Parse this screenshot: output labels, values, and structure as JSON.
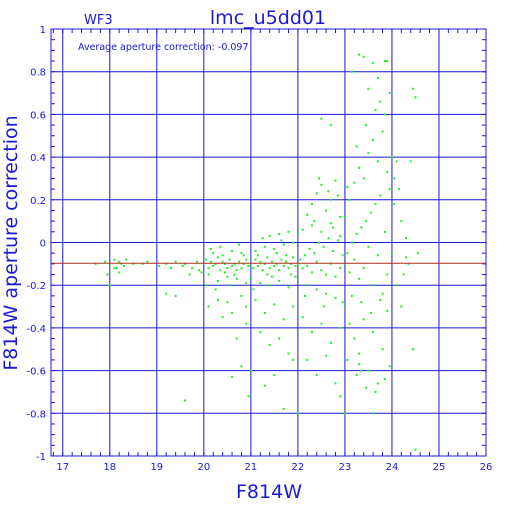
{
  "chart_data": {
    "type": "scatter",
    "title": "lmc_u5dd01",
    "subtitle": "WF3",
    "annotation": "Average aperture correction: -0.097",
    "xlabel": "F814W",
    "ylabel": "F814W aperture correction",
    "xlim": [
      16.75,
      26
    ],
    "ylim": [
      -1,
      1
    ],
    "x_ticks": [
      17,
      18,
      19,
      20,
      21,
      22,
      23,
      24,
      25,
      26
    ],
    "y_ticks": [
      -1,
      -0.8,
      -0.6,
      -0.4,
      -0.2,
      0,
      0.2,
      0.4,
      0.6,
      0.8,
      1
    ],
    "x_tick_labels": [
      "17",
      "18",
      "19",
      "20",
      "21",
      "22",
      "23",
      "24",
      "25",
      "26"
    ],
    "y_tick_labels": [
      "-1",
      "-0.8",
      "-0.6",
      "-0.4",
      "-0.2",
      "0",
      "0.2",
      "0.4",
      "0.6",
      "0.8",
      "1"
    ],
    "grid": true,
    "reference_line": -0.097,
    "colors": {
      "axes": "#1a1ad6",
      "points": "#22ee22",
      "reference_line": "#b42a1e",
      "background": "#ffffff"
    },
    "series": [
      {
        "points": [
          [
            17.7,
            -0.1
          ],
          [
            17.9,
            -0.09
          ],
          [
            18.0,
            -0.1
          ],
          [
            18.1,
            -0.08
          ],
          [
            18.15,
            -0.12
          ],
          [
            18.2,
            -0.09
          ],
          [
            18.25,
            -0.1
          ],
          [
            18.3,
            -0.11
          ],
          [
            18.35,
            -0.08
          ],
          [
            18.5,
            -0.1
          ],
          [
            18.7,
            -0.1
          ],
          [
            18.8,
            -0.09
          ],
          [
            18.0,
            -0.2
          ],
          [
            18.2,
            -0.14
          ],
          [
            17.95,
            -0.15
          ],
          [
            18.1,
            -0.12
          ],
          [
            19.05,
            -0.11
          ],
          [
            19.2,
            -0.1
          ],
          [
            19.3,
            -0.12
          ],
          [
            19.4,
            -0.09
          ],
          [
            19.55,
            -0.11
          ],
          [
            19.6,
            -0.1
          ],
          [
            19.75,
            -0.12
          ],
          [
            19.85,
            -0.09
          ],
          [
            19.2,
            -0.24
          ],
          [
            19.4,
            -0.25
          ],
          [
            19.6,
            -0.74
          ],
          [
            19.7,
            -0.15
          ],
          [
            19.9,
            -0.13
          ],
          [
            19.95,
            -0.14
          ],
          [
            20.0,
            -0.1
          ],
          [
            20.05,
            -0.08
          ],
          [
            20.1,
            -0.12
          ],
          [
            20.15,
            -0.09
          ],
          [
            20.2,
            -0.11
          ],
          [
            20.25,
            -0.1
          ],
          [
            20.3,
            -0.07
          ],
          [
            20.35,
            -0.13
          ],
          [
            20.4,
            -0.09
          ],
          [
            20.45,
            -0.1
          ],
          [
            20.5,
            -0.12
          ],
          [
            20.55,
            -0.08
          ],
          [
            20.6,
            -0.11
          ],
          [
            20.65,
            -0.1
          ],
          [
            20.7,
            -0.13
          ],
          [
            20.75,
            -0.09
          ],
          [
            20.8,
            -0.12
          ],
          [
            20.85,
            -0.1
          ],
          [
            20.9,
            -0.08
          ],
          [
            20.95,
            -0.11
          ],
          [
            20.1,
            -0.15
          ],
          [
            20.2,
            -0.05
          ],
          [
            20.3,
            -0.18
          ],
          [
            20.4,
            -0.06
          ],
          [
            20.5,
            -0.16
          ],
          [
            20.6,
            -0.04
          ],
          [
            20.7,
            -0.17
          ],
          [
            20.8,
            -0.05
          ],
          [
            20.9,
            -0.19
          ],
          [
            20.15,
            -0.03
          ],
          [
            20.35,
            -0.02
          ],
          [
            20.55,
            -0.2
          ],
          [
            20.75,
            -0.01
          ],
          [
            20.25,
            -0.22
          ],
          [
            20.45,
            -0.14
          ],
          [
            20.65,
            -0.15
          ],
          [
            20.85,
            -0.06
          ],
          [
            20.05,
            -0.2
          ],
          [
            20.3,
            -0.27
          ],
          [
            20.6,
            -0.33
          ],
          [
            20.8,
            -0.25
          ],
          [
            20.9,
            -0.38
          ],
          [
            20.7,
            -0.45
          ],
          [
            20.4,
            -0.35
          ],
          [
            20.8,
            -0.58
          ],
          [
            20.6,
            -0.63
          ],
          [
            20.95,
            -0.72
          ],
          [
            20.1,
            -0.3
          ],
          [
            20.5,
            -0.28
          ],
          [
            20.9,
            -0.3
          ],
          [
            21.0,
            -0.1
          ],
          [
            21.05,
            -0.12
          ],
          [
            21.1,
            -0.08
          ],
          [
            21.15,
            -0.11
          ],
          [
            21.2,
            -0.09
          ],
          [
            21.25,
            -0.13
          ],
          [
            21.3,
            -0.1
          ],
          [
            21.35,
            -0.07
          ],
          [
            21.4,
            -0.12
          ],
          [
            21.45,
            -0.09
          ],
          [
            21.5,
            -0.11
          ],
          [
            21.55,
            -0.1
          ],
          [
            21.6,
            -0.13
          ],
          [
            21.65,
            -0.08
          ],
          [
            21.7,
            -0.11
          ],
          [
            21.75,
            -0.09
          ],
          [
            21.8,
            -0.12
          ],
          [
            21.85,
            -0.1
          ],
          [
            21.9,
            -0.07
          ],
          [
            21.95,
            -0.11
          ],
          [
            21.0,
            -0.17
          ],
          [
            21.1,
            -0.04
          ],
          [
            21.2,
            -0.19
          ],
          [
            21.3,
            -0.02
          ],
          [
            21.4,
            -0.2
          ],
          [
            21.5,
            -0.03
          ],
          [
            21.6,
            -0.18
          ],
          [
            21.7,
            -0.01
          ],
          [
            21.8,
            -0.21
          ],
          [
            21.9,
            0.0
          ],
          [
            21.05,
            -0.22
          ],
          [
            21.25,
            0.02
          ],
          [
            21.45,
            -0.16
          ],
          [
            21.65,
            0.01
          ],
          [
            21.85,
            -0.15
          ],
          [
            21.15,
            -0.06
          ],
          [
            21.35,
            -0.15
          ],
          [
            21.55,
            -0.05
          ],
          [
            21.75,
            -0.06
          ],
          [
            21.95,
            -0.16
          ],
          [
            21.1,
            -0.27
          ],
          [
            21.3,
            -0.33
          ],
          [
            21.5,
            -0.29
          ],
          [
            21.7,
            -0.36
          ],
          [
            21.9,
            -0.3
          ],
          [
            21.2,
            -0.42
          ],
          [
            21.4,
            -0.48
          ],
          [
            21.6,
            -0.45
          ],
          [
            21.8,
            -0.52
          ],
          [
            21.0,
            -0.6
          ],
          [
            21.3,
            -0.67
          ],
          [
            21.5,
            -0.62
          ],
          [
            21.7,
            -0.78
          ],
          [
            21.9,
            -0.55
          ],
          [
            21.6,
            0.04
          ],
          [
            21.8,
            0.05
          ],
          [
            21.4,
            0.03
          ],
          [
            22.0,
            -0.1
          ],
          [
            22.05,
            -0.08
          ],
          [
            22.1,
            -0.12
          ],
          [
            22.15,
            -0.06
          ],
          [
            22.2,
            -0.11
          ],
          [
            22.25,
            -0.03
          ],
          [
            22.3,
            -0.14
          ],
          [
            22.35,
            -0.05
          ],
          [
            22.4,
            -0.09
          ],
          [
            22.45,
            0.0
          ],
          [
            22.5,
            -0.13
          ],
          [
            22.55,
            -0.02
          ],
          [
            22.6,
            -0.15
          ],
          [
            22.65,
            0.02
          ],
          [
            22.7,
            -0.1
          ],
          [
            22.75,
            -0.04
          ],
          [
            22.8,
            -0.16
          ],
          [
            22.85,
            0.01
          ],
          [
            22.9,
            -0.12
          ],
          [
            22.95,
            -0.06
          ],
          [
            22.0,
            0.04
          ],
          [
            22.1,
            0.06
          ],
          [
            22.2,
            -0.2
          ],
          [
            22.3,
            0.08
          ],
          [
            22.4,
            -0.22
          ],
          [
            22.5,
            0.05
          ],
          [
            22.6,
            -0.24
          ],
          [
            22.7,
            0.09
          ],
          [
            22.8,
            -0.26
          ],
          [
            22.9,
            0.03
          ],
          [
            22.15,
            -0.25
          ],
          [
            22.35,
            0.1
          ],
          [
            22.55,
            -0.3
          ],
          [
            22.75,
            0.07
          ],
          [
            22.95,
            -0.28
          ],
          [
            22.2,
            0.13
          ],
          [
            22.3,
            0.18
          ],
          [
            22.4,
            0.23
          ],
          [
            22.5,
            0.27
          ],
          [
            22.6,
            0.15
          ],
          [
            22.7,
            0.2
          ],
          [
            22.8,
            0.29
          ],
          [
            22.9,
            0.12
          ],
          [
            22.45,
            0.3
          ],
          [
            22.65,
            0.24
          ],
          [
            22.85,
            0.22
          ],
          [
            22.1,
            -0.35
          ],
          [
            22.3,
            -0.42
          ],
          [
            22.5,
            -0.38
          ],
          [
            22.7,
            -0.47
          ],
          [
            22.9,
            -0.4
          ],
          [
            22.2,
            -0.55
          ],
          [
            22.4,
            -0.62
          ],
          [
            22.6,
            -0.53
          ],
          [
            22.8,
            -0.66
          ],
          [
            22.0,
            -0.8
          ],
          [
            22.9,
            -0.72
          ],
          [
            22.5,
            0.58
          ],
          [
            22.7,
            0.55
          ],
          [
            23.0,
            -0.1
          ],
          [
            23.05,
            -0.05
          ],
          [
            23.1,
            -0.14
          ],
          [
            23.15,
            0.0
          ],
          [
            23.2,
            -0.08
          ],
          [
            23.25,
            0.04
          ],
          [
            23.3,
            -0.17
          ],
          [
            23.35,
            0.07
          ],
          [
            23.4,
            -0.12
          ],
          [
            23.45,
            0.1
          ],
          [
            23.5,
            -0.02
          ],
          [
            23.55,
            0.14
          ],
          [
            23.6,
            -0.2
          ],
          [
            23.65,
            0.18
          ],
          [
            23.7,
            -0.06
          ],
          [
            23.75,
            0.22
          ],
          [
            23.8,
            -0.24
          ],
          [
            23.85,
            0.05
          ],
          [
            23.9,
            -0.15
          ],
          [
            23.95,
            0.25
          ],
          [
            23.0,
            0.12
          ],
          [
            23.1,
            0.2
          ],
          [
            23.2,
            0.28
          ],
          [
            23.3,
            0.35
          ],
          [
            23.4,
            0.3
          ],
          [
            23.5,
            0.42
          ],
          [
            23.6,
            0.48
          ],
          [
            23.7,
            0.38
          ],
          [
            23.8,
            0.52
          ],
          [
            23.9,
            0.33
          ],
          [
            23.05,
            0.26
          ],
          [
            23.25,
            0.45
          ],
          [
            23.45,
            0.55
          ],
          [
            23.65,
            0.62
          ],
          [
            23.85,
            0.6
          ],
          [
            23.3,
            0.88
          ],
          [
            23.4,
            0.87
          ],
          [
            23.6,
            0.84
          ],
          [
            23.7,
            0.77
          ],
          [
            23.85,
            0.85
          ],
          [
            23.9,
            0.85
          ],
          [
            23.5,
            0.72
          ],
          [
            23.75,
            0.66
          ],
          [
            23.15,
            0.8
          ],
          [
            23.95,
            0.7
          ],
          [
            23.0,
            -0.3
          ],
          [
            23.1,
            -0.38
          ],
          [
            23.2,
            -0.45
          ],
          [
            23.3,
            -0.52
          ],
          [
            23.4,
            -0.36
          ],
          [
            23.5,
            -0.6
          ],
          [
            23.6,
            -0.42
          ],
          [
            23.7,
            -0.66
          ],
          [
            23.8,
            -0.5
          ],
          [
            23.9,
            -0.32
          ],
          [
            23.05,
            -0.55
          ],
          [
            23.25,
            -0.62
          ],
          [
            23.45,
            -0.68
          ],
          [
            23.65,
            -0.7
          ],
          [
            23.85,
            -0.64
          ],
          [
            23.15,
            -0.25
          ],
          [
            23.35,
            -0.28
          ],
          [
            23.55,
            -0.33
          ],
          [
            23.75,
            -0.27
          ],
          [
            23.95,
            -0.58
          ],
          [
            23.0,
            -0.8
          ],
          [
            23.3,
            -0.57
          ],
          [
            23.6,
            -0.8
          ],
          [
            23.35,
            -0.6
          ],
          [
            24.0,
            0.4
          ],
          [
            24.05,
            0.3
          ],
          [
            24.1,
            0.38
          ],
          [
            24.15,
            0.25
          ],
          [
            24.2,
            0.1
          ],
          [
            24.25,
            -0.15
          ],
          [
            24.3,
            0.02
          ],
          [
            24.35,
            -0.1
          ],
          [
            24.4,
            0.38
          ],
          [
            24.45,
            0.72
          ],
          [
            24.5,
            0.68
          ],
          [
            24.55,
            -0.05
          ],
          [
            24.0,
            -0.05
          ],
          [
            24.1,
            -0.2
          ],
          [
            24.2,
            -0.3
          ],
          [
            24.3,
            -0.07
          ],
          [
            24.45,
            -0.5
          ],
          [
            24.5,
            -0.97
          ],
          [
            24.05,
            0.18
          ]
        ]
      }
    ]
  }
}
